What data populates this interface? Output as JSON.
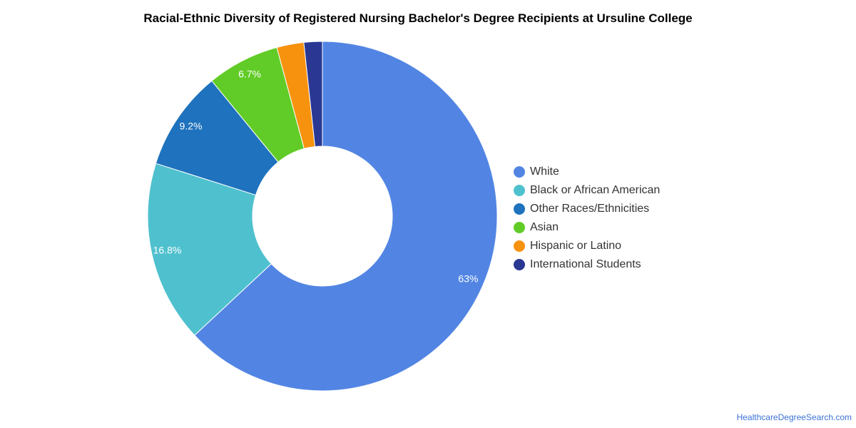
{
  "title": "Racial-Ethnic Diversity of Registered Nursing Bachelor's Degree Recipients at Ursuline College",
  "source": "HealthcareDegreeSearch.com",
  "chart_data": {
    "type": "pie",
    "variant": "donut",
    "title": "Racial-Ethnic Diversity of Registered Nursing Bachelor's Degree Recipients at Ursuline College",
    "legend_position": "right",
    "slices": [
      {
        "label": "White",
        "value": 63.0,
        "display": "63%",
        "color": "#5285e3"
      },
      {
        "label": "Black or African American",
        "value": 16.8,
        "display": "16.8%",
        "color": "#4fc1ce"
      },
      {
        "label": "Other Races/Ethnicities",
        "value": 9.2,
        "display": "9.2%",
        "color": "#1f72bd"
      },
      {
        "label": "Asian",
        "value": 6.7,
        "display": "6.7%",
        "color": "#61cc27"
      },
      {
        "label": "Hispanic or Latino",
        "value": 2.5,
        "display": "",
        "color": "#f7920f"
      },
      {
        "label": "International Students",
        "value": 1.7,
        "display": "",
        "color": "#2a3894"
      }
    ]
  }
}
